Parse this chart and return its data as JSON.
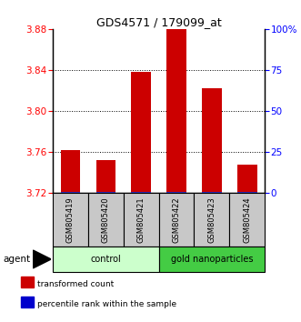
{
  "title": "GDS4571 / 179099_at",
  "samples": [
    "GSM805419",
    "GSM805420",
    "GSM805421",
    "GSM805422",
    "GSM805423",
    "GSM805424"
  ],
  "red_values": [
    3.762,
    3.752,
    3.838,
    3.882,
    3.822,
    3.748
  ],
  "blue_values": [
    0.8,
    0.8,
    0.8,
    0.8,
    0.8,
    0.8
  ],
  "ylim_left": [
    3.72,
    3.88
  ],
  "ylim_right": [
    0,
    100
  ],
  "yticks_left": [
    3.72,
    3.76,
    3.8,
    3.84,
    3.88
  ],
  "yticks_right": [
    0,
    25,
    50,
    75,
    100
  ],
  "ytick_labels_right": [
    "0",
    "25",
    "50",
    "75",
    "100%"
  ],
  "grid_lines": [
    3.76,
    3.8,
    3.84
  ],
  "groups": [
    {
      "label": "control",
      "indices": [
        0,
        1,
        2
      ],
      "color": "#ccffcc"
    },
    {
      "label": "gold nanoparticles",
      "indices": [
        3,
        4,
        5
      ],
      "color": "#44cc44"
    }
  ],
  "agent_label": "agent",
  "legend_items": [
    {
      "color": "#cc0000",
      "label": "transformed count"
    },
    {
      "color": "#0000cc",
      "label": "percentile rank within the sample"
    }
  ],
  "bar_width": 0.55,
  "red_color": "#cc0000",
  "blue_color": "#3333cc",
  "base_value": 3.72,
  "background_color": "#ffffff",
  "sample_bg": "#c8c8c8",
  "title_fontsize": 9
}
